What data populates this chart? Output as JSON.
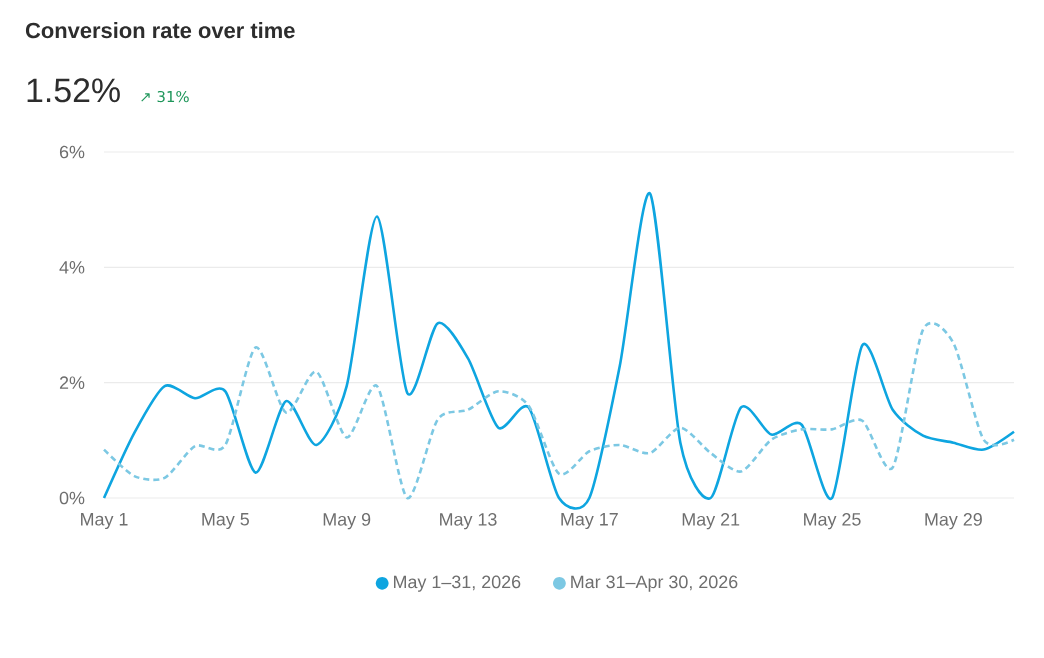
{
  "chart_data": {
    "type": "line",
    "title": "Conversion rate over time",
    "annotations": [
      "1.52%",
      "↗ 31%"
    ],
    "categories": [
      "May 1",
      null,
      null,
      null,
      "May 5",
      null,
      null,
      null,
      "May 9",
      null,
      null,
      null,
      "May 13",
      null,
      null,
      null,
      "May 17",
      null,
      null,
      null,
      "May 21",
      null,
      null,
      null,
      "May 25",
      null,
      null,
      null,
      "May 29",
      null,
      null
    ],
    "series": [
      {
        "name": "May 1–31, 2026",
        "color": "#0ea5e0",
        "line_style": "solid",
        "values": [
          0,
          1.13,
          1.94,
          1.73,
          1.85,
          0.44,
          1.68,
          0.92,
          1.94,
          4.88,
          1.82,
          3.03,
          2.42,
          1.22,
          1.57,
          0,
          0,
          2.28,
          5.28,
          0.96,
          0,
          1.57,
          1.1,
          1.27,
          0,
          2.65,
          1.53,
          1.08,
          0.96,
          0.84,
          1.15
        ]
      },
      {
        "name": "Mar 31–Apr 30, 2026",
        "color": "#7cc8e3",
        "line_style": "dashed",
        "values": [
          0.84,
          0.38,
          0.35,
          0.9,
          0.92,
          2.61,
          1.48,
          2.19,
          1.05,
          1.94,
          0,
          1.36,
          1.53,
          1.85,
          1.6,
          0.42,
          0.81,
          0.92,
          0.78,
          1.22,
          0.78,
          0.46,
          1.01,
          1.19,
          1.19,
          1.34,
          0.53,
          2.92,
          2.69,
          1.01,
          1.01
        ]
      }
    ],
    "ylim": [
      0,
      6
    ],
    "yticks": [
      {
        "value": 0,
        "label": "0%"
      },
      {
        "value": 2,
        "label": "2%"
      },
      {
        "value": 4,
        "label": "4%"
      },
      {
        "value": 6,
        "label": "6%"
      }
    ],
    "grid": "y",
    "legend": "bottom",
    "marker": "none"
  }
}
